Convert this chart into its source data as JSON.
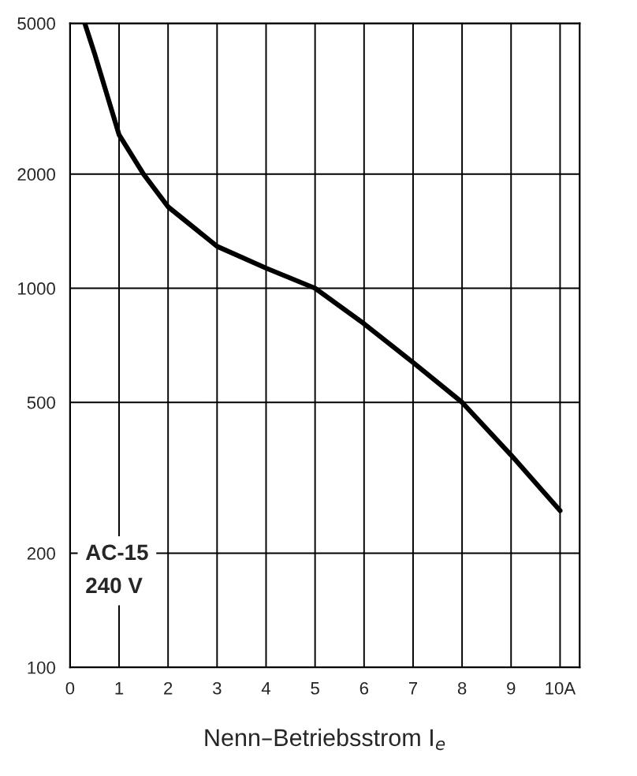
{
  "chart_data": {
    "type": "line",
    "xlabel": "Nenn–Betriebsstrom I$_{e}$",
    "x": [
      0.3,
      0.5,
      1,
      1.5,
      2,
      3,
      4,
      5,
      6,
      7,
      8,
      9,
      10
    ],
    "series": [
      {
        "color": "#000000",
        "values": [
          5000,
          4160,
          2540,
          2000,
          1640,
          1290,
          1130,
          1000,
          806,
          637,
          500,
          363,
          259
        ]
      }
    ],
    "xlim": [
      0,
      10.4
    ],
    "xticks": [
      0,
      1,
      2,
      3,
      4,
      5,
      6,
      7,
      8,
      9,
      {
        "value": 10,
        "label": "10A"
      }
    ],
    "ylim": [
      100,
      5000
    ],
    "yticks": [
      100,
      200,
      500,
      1000,
      2000,
      5000
    ],
    "log": "y",
    "grid": true,
    "marker": "none",
    "line_style": "solid",
    "annotations": [
      "AC-15\n240 V"
    ]
  }
}
